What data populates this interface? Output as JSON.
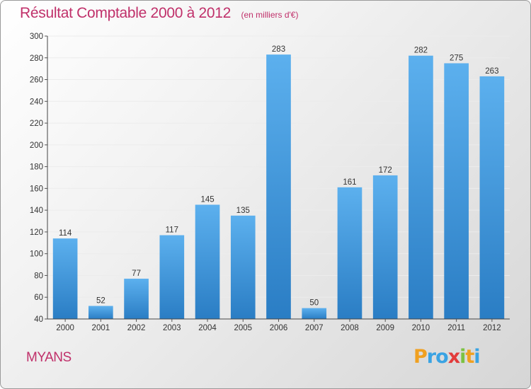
{
  "header": {
    "title": "Résultat Comptable 2000 à 2012",
    "subtitle": "(en milliers d'€)"
  },
  "footer": {
    "commune": "MYANS"
  },
  "logo": {
    "text": "Proxiti",
    "letters": [
      "P",
      "r",
      "o",
      "x",
      "i",
      "t",
      "i"
    ],
    "letter_colors": [
      "#f0a020",
      "#3aa3e3",
      "#3aa3e3",
      "#e23b3b",
      "#7cc242",
      "#f0a020",
      "#3aa3e3"
    ]
  },
  "colors": {
    "bar_top": "#5cb0ee",
    "bar_bottom": "#2a7dc4",
    "accent": "#c0306a"
  },
  "chart_data": {
    "type": "bar",
    "title": "Résultat Comptable 2000 à 2012",
    "subtitle": "(en milliers d'€)",
    "xlabel": "",
    "ylabel": "",
    "categories": [
      "2000",
      "2001",
      "2002",
      "2003",
      "2004",
      "2005",
      "2006",
      "2007",
      "2008",
      "2009",
      "2010",
      "2011",
      "2012"
    ],
    "values": [
      114,
      52,
      77,
      117,
      145,
      135,
      283,
      50,
      161,
      172,
      282,
      275,
      263
    ],
    "ylim": [
      40,
      300
    ],
    "yticks": [
      40,
      60,
      80,
      100,
      120,
      140,
      160,
      180,
      200,
      220,
      240,
      260,
      280,
      300
    ],
    "grid": true
  }
}
